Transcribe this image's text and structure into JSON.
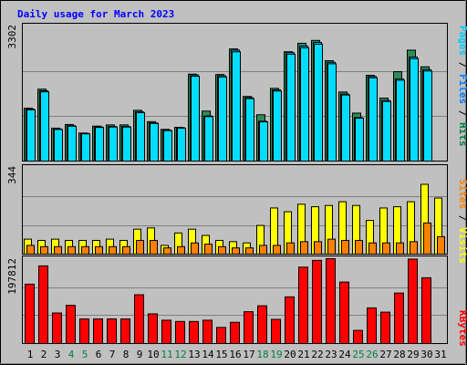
{
  "chart_data": [
    {
      "type": "bar",
      "title": "Daily usage for March 2023",
      "panel": "hits",
      "ymax_label": "3302",
      "ylim": [
        0,
        3302
      ],
      "grid": true,
      "axis_label": {
        "pages": "Pages",
        "files": "Files",
        "hits": "Hits",
        "sep": " / "
      },
      "categories": [
        "1",
        "2",
        "3",
        "4",
        "5",
        "6",
        "7",
        "8",
        "9",
        "10",
        "11",
        "12",
        "13",
        "14",
        "15",
        "16",
        "17",
        "18",
        "19",
        "20",
        "21",
        "22",
        "23",
        "24",
        "25",
        "26",
        "27",
        "28",
        "29",
        "30",
        "31"
      ],
      "weekend_days": [
        "4",
        "5",
        "11",
        "12",
        "18",
        "19",
        "25",
        "26"
      ],
      "series": [
        {
          "name": "Hits",
          "values": [
            1300,
            1770,
            810,
            900,
            690,
            860,
            890,
            890,
            1250,
            970,
            780,
            830,
            2140,
            1230,
            2130,
            2760,
            1590,
            1140,
            1790,
            2690,
            2900,
            2970,
            2470,
            1700,
            1180,
            2110,
            1550,
            2200,
            2730,
            2320,
            0
          ]
        },
        {
          "name": "Files",
          "values": [
            1280,
            1730,
            790,
            870,
            680,
            840,
            850,
            850,
            1210,
            940,
            760,
            820,
            2120,
            1110,
            2100,
            2730,
            1560,
            980,
            1750,
            2670,
            2830,
            2920,
            2430,
            1650,
            1070,
            2080,
            1490,
            2020,
            2560,
            2250,
            0
          ]
        }
      ]
    },
    {
      "type": "bar",
      "panel": "visits",
      "ymax_label": "344",
      "ylim": [
        0,
        344
      ],
      "axis_label": {
        "sites": "Sites",
        "visits": "Visits",
        "sep": " / "
      },
      "series": [
        {
          "name": "Visits",
          "values": [
            60,
            55,
            60,
            55,
            55,
            55,
            60,
            55,
            100,
            105,
            35,
            85,
            100,
            75,
            55,
            50,
            45,
            115,
            185,
            170,
            200,
            190,
            195,
            210,
            195,
            135,
            185,
            190,
            210,
            280,
            225
          ]
        },
        {
          "name": "Sites",
          "values": [
            35,
            30,
            30,
            30,
            30,
            30,
            30,
            30,
            55,
            55,
            25,
            30,
            45,
            40,
            30,
            25,
            25,
            35,
            35,
            45,
            50,
            50,
            60,
            55,
            55,
            45,
            45,
            45,
            50,
            125,
            70
          ]
        }
      ]
    },
    {
      "type": "bar",
      "panel": "kbytes",
      "ymax_label": "197812",
      "ylim": [
        0,
        197812
      ],
      "axis_label": {
        "kbytes": "KBytes"
      },
      "series": [
        {
          "name": "KBytes",
          "values": [
            140000,
            183000,
            72000,
            90000,
            58000,
            58000,
            58000,
            58000,
            115000,
            70000,
            55000,
            52000,
            52000,
            55000,
            38000,
            50000,
            75000,
            89000,
            57000,
            110000,
            180000,
            196000,
            200000,
            145000,
            31000,
            84000,
            74000,
            119000,
            199000,
            155000,
            0
          ]
        }
      ]
    }
  ]
}
